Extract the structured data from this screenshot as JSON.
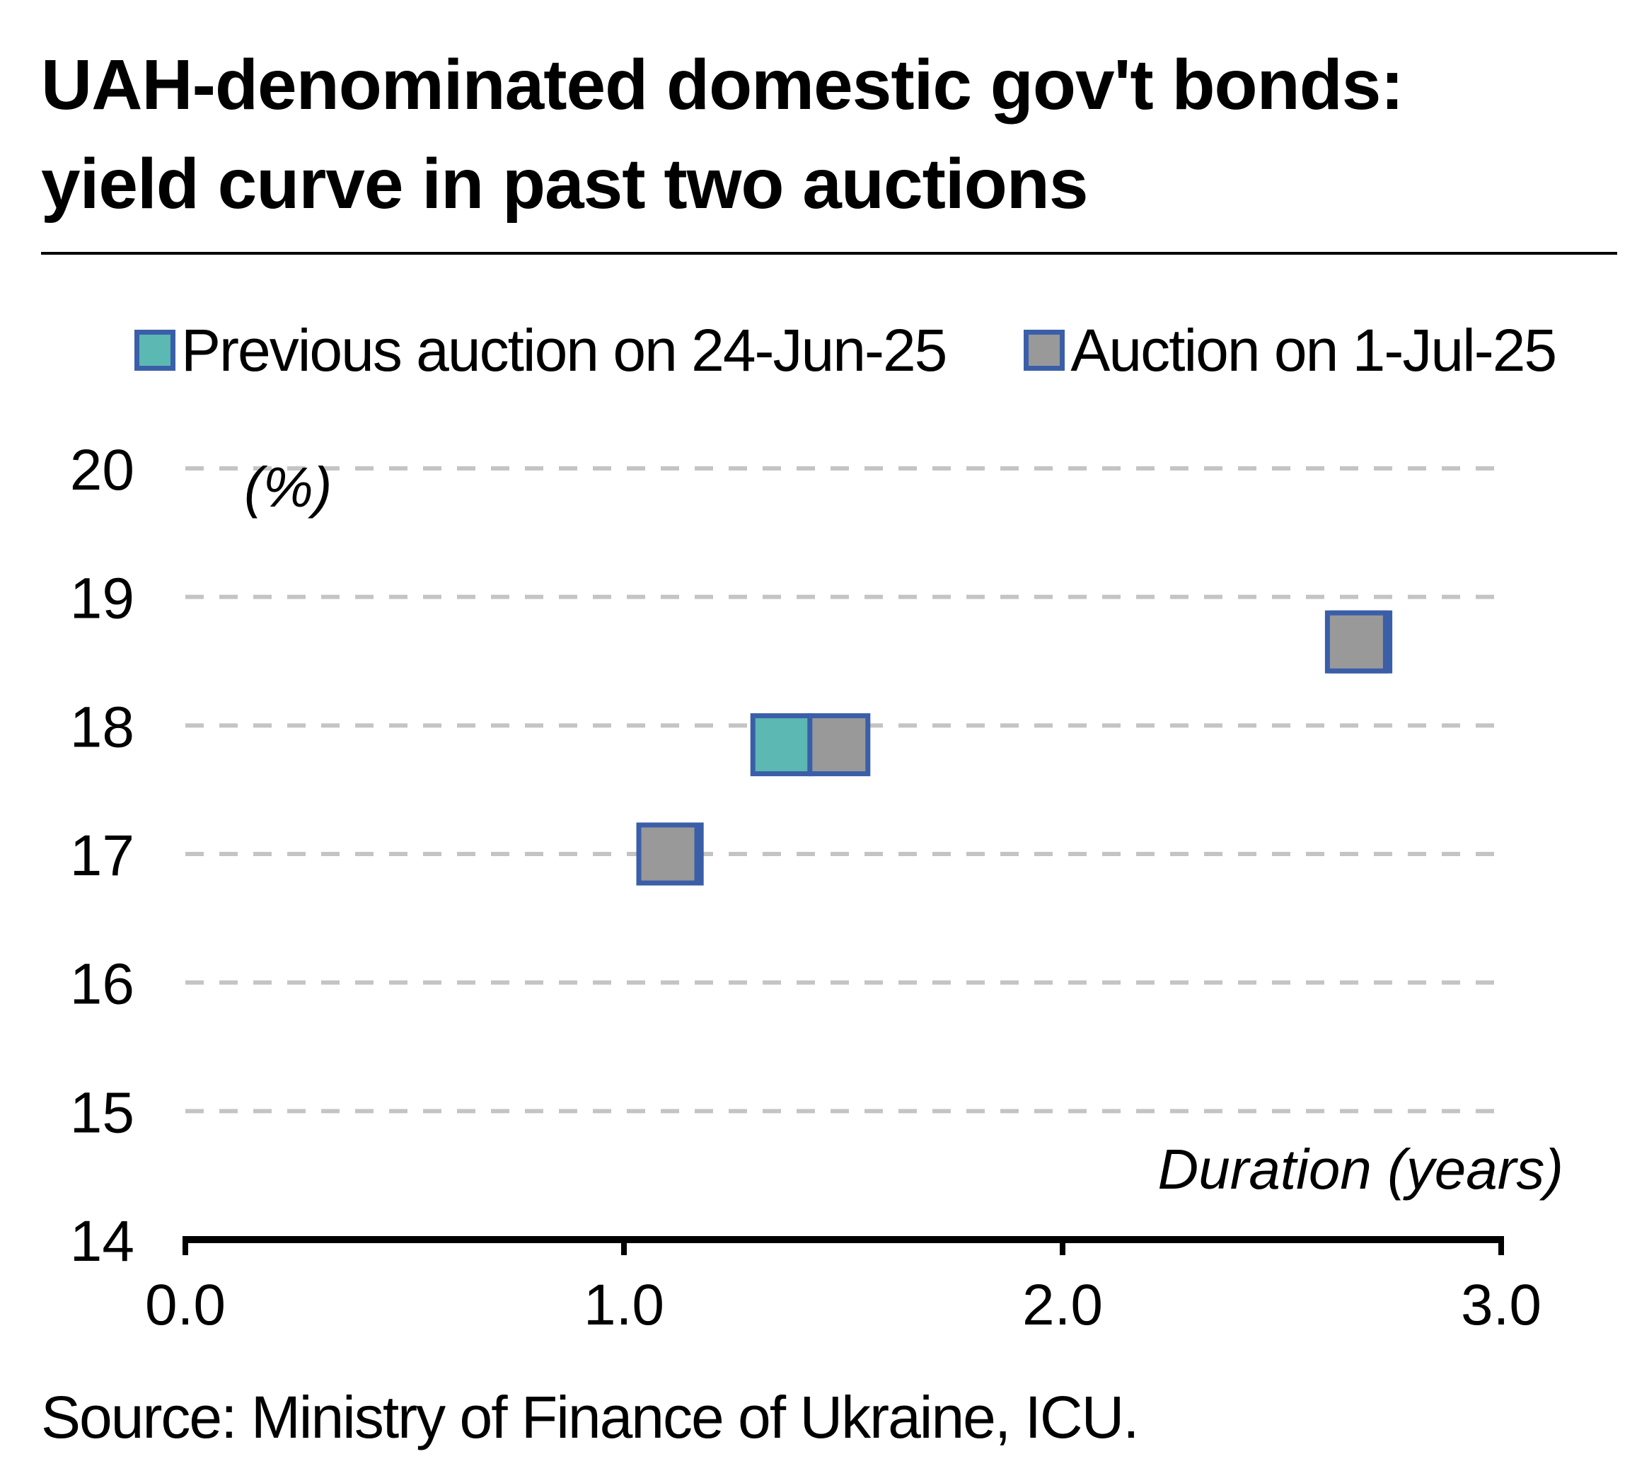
{
  "title_lines": [
    "UAH-denominated domestic gov't bonds:",
    "yield curve in past two auctions"
  ],
  "source": "Source: Ministry of Finance of Ukraine, ICU.",
  "colors": {
    "previous_fill": "#5bb8b2",
    "current_fill": "#999999",
    "marker_border": "#3b5ea8",
    "grid": "#c4c4c4",
    "axis": "#000000"
  },
  "chart_data": {
    "type": "scatter",
    "ylabel": "(%)",
    "xlabel": "Duration (years)",
    "xlim": [
      0,
      3
    ],
    "ylim": [
      14,
      20
    ],
    "x_ticks": [
      "0.0",
      "1.0",
      "2.0",
      "3.0"
    ],
    "y_ticks": [
      "14",
      "15",
      "16",
      "17",
      "18",
      "19",
      "20"
    ],
    "grid": "horizontal dashed",
    "legend_position": "top",
    "series": [
      {
        "name": "Previous auction on 24-Jun-25",
        "color": "#5bb8b2",
        "points": [
          {
            "x": 1.11,
            "y": 17.0
          },
          {
            "x": 1.36,
            "y": 17.85
          },
          {
            "x": 2.68,
            "y": 18.65
          }
        ]
      },
      {
        "name": "Auction on 1-Jul-25",
        "color": "#999999",
        "points": [
          {
            "x": 1.1,
            "y": 17.0
          },
          {
            "x": 1.49,
            "y": 17.85
          },
          {
            "x": 2.67,
            "y": 18.65
          }
        ]
      }
    ]
  }
}
